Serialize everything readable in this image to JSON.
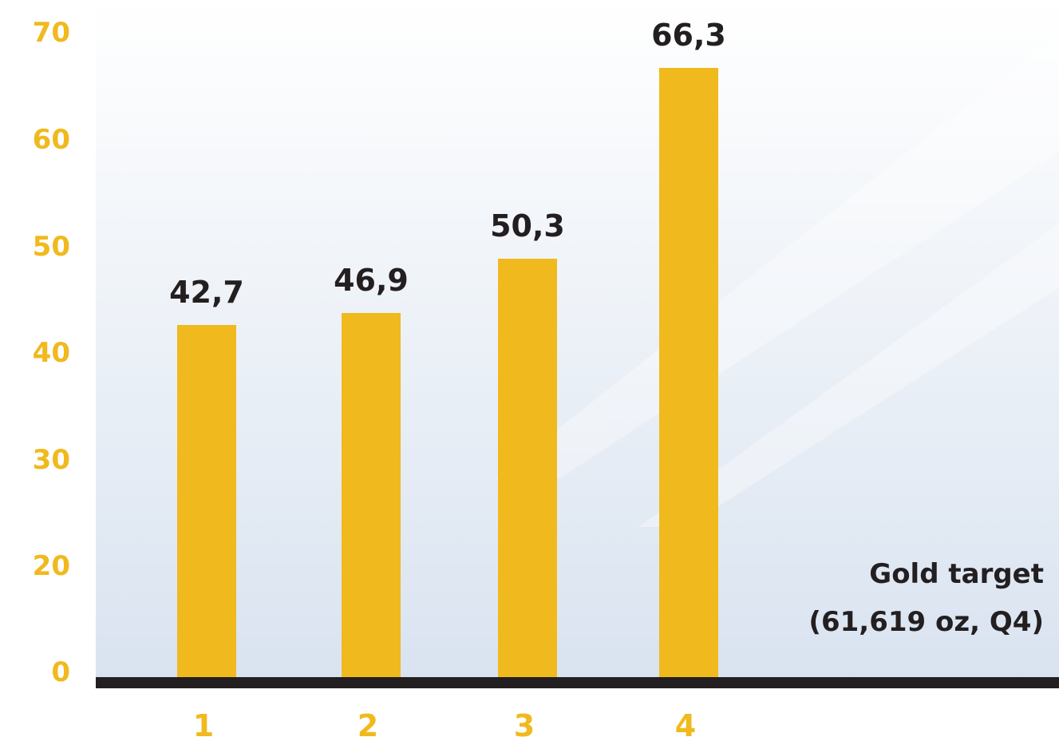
{
  "chart_data": {
    "type": "bar",
    "categories": [
      "1",
      "2",
      "3",
      "4"
    ],
    "values": [
      42.7,
      46.9,
      50.3,
      66.3
    ],
    "value_labels": [
      "42,7",
      "46,9",
      "50,3",
      "66,3"
    ],
    "y_ticks": [
      "0",
      "20",
      "30",
      "40",
      "50",
      "60",
      "70"
    ],
    "ylim": [
      0,
      70
    ],
    "grid": false,
    "annotation": {
      "line1": "Gold target",
      "line2": "(61,619 oz, Q4)"
    }
  },
  "colors": {
    "bar": "#f0b91e",
    "axis_line": "#231f20",
    "tick_text": "#f0b91e",
    "value_text": "#231f20",
    "plot_bg_top": "#ffffff",
    "plot_bg_bottom": "#d9e3f0"
  }
}
